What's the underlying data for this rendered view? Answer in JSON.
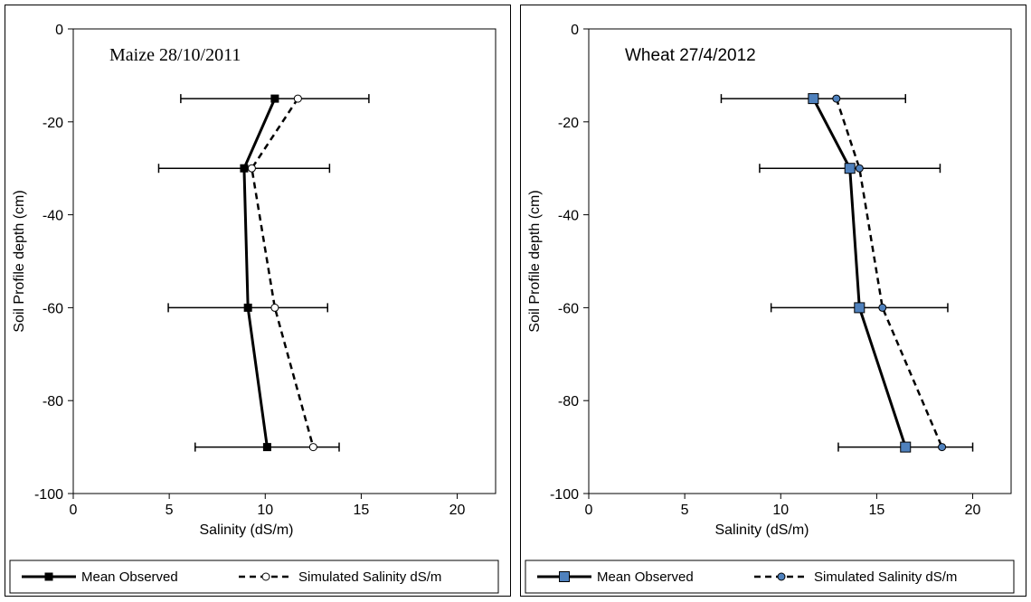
{
  "chart_data": [
    {
      "type": "line",
      "annotation": "Maize 28/10/2011",
      "xlabel": "Salinity (dS/m)",
      "ylabel": "Soil Profile depth (cm)",
      "xlim": [
        0,
        22
      ],
      "ylim": [
        -100,
        0
      ],
      "x_ticks": [
        "0",
        "5",
        "10",
        "15",
        "20"
      ],
      "y_ticks": [
        "0",
        "-20",
        "-40",
        "-60",
        "-80",
        "-100"
      ],
      "grid": false,
      "legend_position": "bottom",
      "series": [
        {
          "name": "Mean Observed",
          "style": "solid",
          "marker": "square",
          "marker_color": "#000000",
          "x": [
            10.5,
            8.9,
            9.1,
            10.1
          ],
          "y": [
            -15,
            -30,
            -60,
            -90
          ],
          "error_x": [
            4.9,
            4.45,
            4.15,
            3.75
          ]
        },
        {
          "name": "Simulated Salinity  dS/m",
          "style": "dashed",
          "marker": "circle",
          "marker_color": "#ffffff",
          "x": [
            11.7,
            9.3,
            10.5,
            12.5
          ],
          "y": [
            -15,
            -30,
            -60,
            -90
          ]
        }
      ]
    },
    {
      "type": "line",
      "annotation": "Wheat 27/4/2012",
      "xlabel": "Salinity (dS/m)",
      "ylabel": "Soil Profile depth (cm)",
      "xlim": [
        0,
        22
      ],
      "ylim": [
        -100,
        0
      ],
      "x_ticks": [
        "0",
        "5",
        "10",
        "15",
        "20"
      ],
      "y_ticks": [
        "0",
        "-20",
        "-40",
        "-60",
        "-80",
        "-100"
      ],
      "grid": false,
      "legend_position": "bottom",
      "series": [
        {
          "name": "Mean Observed",
          "style": "solid",
          "marker": "square",
          "marker_color": "#4f81bd",
          "x": [
            11.7,
            13.6,
            14.1,
            16.5
          ],
          "y": [
            -15,
            -30,
            -60,
            -90
          ],
          "error_x": [
            4.8,
            4.7,
            4.6,
            3.5
          ]
        },
        {
          "name": "Simulated Salinity  dS/m",
          "style": "dashed",
          "marker": "circle",
          "marker_color": "#4f81bd",
          "x": [
            12.9,
            14.1,
            15.3,
            18.4
          ],
          "y": [
            -15,
            -30,
            -60,
            -90
          ]
        }
      ]
    }
  ]
}
